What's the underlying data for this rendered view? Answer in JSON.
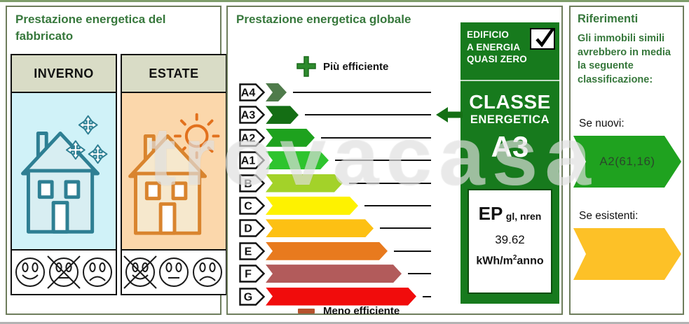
{
  "watermark": "trovacasa",
  "left_panel": {
    "title": "Prestazione energetica del fabbricato",
    "columns": [
      {
        "header": "INVERNO",
        "season": "winter",
        "faces": [
          {
            "mood": "happy",
            "crossed": false
          },
          {
            "mood": "neutral",
            "crossed": true
          },
          {
            "mood": "sad",
            "crossed": false
          }
        ]
      },
      {
        "header": "ESTATE",
        "season": "summer",
        "faces": [
          {
            "mood": "happy",
            "crossed": true
          },
          {
            "mood": "neutral",
            "crossed": false
          },
          {
            "mood": "sad",
            "crossed": false
          }
        ]
      }
    ]
  },
  "middle_panel": {
    "title": "Prestazione energetica globale",
    "more_efficient_label": "Più efficiente",
    "less_efficient_label": "Meno efficiente",
    "classes": [
      {
        "label": "A4",
        "color": "#4f7b4b",
        "arrow_width": 30,
        "selected": false
      },
      {
        "label": "A3",
        "color": "#146e14",
        "arrow_width": 47,
        "selected": true
      },
      {
        "label": "A2",
        "color": "#1ea21e",
        "arrow_width": 70,
        "selected": false
      },
      {
        "label": "A1",
        "color": "#2ec42e",
        "arrow_width": 90,
        "selected": false
      },
      {
        "label": "B",
        "color": "#a3d229",
        "arrow_width": 110,
        "selected": false
      },
      {
        "label": "C",
        "color": "#fef200",
        "arrow_width": 132,
        "selected": false
      },
      {
        "label": "D",
        "color": "#fdc013",
        "arrow_width": 154,
        "selected": false
      },
      {
        "label": "E",
        "color": "#e87a1e",
        "arrow_width": 174,
        "selected": false
      },
      {
        "label": "F",
        "color": "#b25b5b",
        "arrow_width": 194,
        "selected": false
      },
      {
        "label": "G",
        "color": "#f10c0c",
        "arrow_width": 215,
        "selected": false
      }
    ],
    "badge": {
      "nzeb_lines": [
        "EDIFICIO",
        "A ENERGIA",
        "QUASI ZERO"
      ],
      "checkbox_checked": true,
      "class_title_line1": "CLASSE",
      "class_title_line2": "ENERGETICA",
      "class_value": "A3",
      "ep_label": "EP",
      "ep_sub": "gl, nren",
      "ep_value": "39.62",
      "ep_unit_pre": "kWh/m",
      "ep_unit_sup": "2",
      "ep_unit_post": "anno"
    }
  },
  "right_panel": {
    "title": "Riferimenti",
    "description": "Gli immobili simili avrebbero in media la seguente classificazione:",
    "if_new_label": "Se nuovi:",
    "if_new_value": "A2(61,16)",
    "if_existing_label": "Se esistenti:",
    "new_arrow_color": "#1fa21f",
    "existing_arrow_color": "#fdc127"
  },
  "colors": {
    "panel_border": "#6e7d5c",
    "title_green": "#37783c",
    "badge_green": "#177a1d",
    "indicator_green": "#156f15",
    "winter_bg": "#d0f2f8",
    "summer_bg": "#fbd7ab",
    "winter_house": "#2e7f93",
    "summer_house": "#d9842e",
    "season_header_bg": "#d9dcc6",
    "less_efficient_dash": "#b5522d"
  }
}
